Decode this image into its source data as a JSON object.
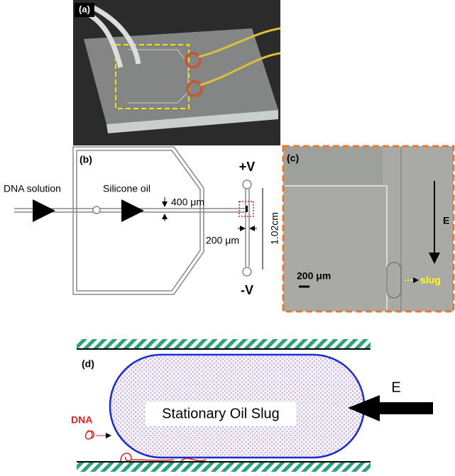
{
  "panel_a": {
    "label": "(a)"
  },
  "panel_b": {
    "label": "(b)",
    "inlet_label": "DNA solution",
    "oil_label": "Silicone oil",
    "channel_width": "400 μm",
    "positive": "+V",
    "negative": "-V",
    "length": "1.02cm",
    "gap": "200 μm"
  },
  "panel_c": {
    "label": "(c)",
    "field": "E",
    "scale": "200 μm",
    "slug": "slug"
  },
  "panel_d": {
    "label": "(d)",
    "dna": "DNA",
    "slug_label": "Stationary Oil Slug",
    "field": "E"
  }
}
